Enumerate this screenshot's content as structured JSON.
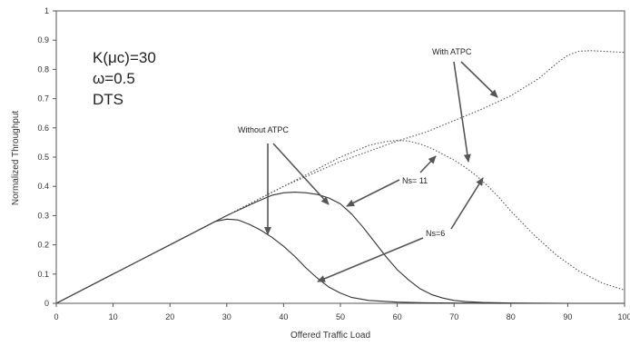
{
  "chart_data": {
    "type": "line",
    "title": "",
    "xlabel": "Offered Traffic Load",
    "ylabel": "Normalized Throughput",
    "xlim": [
      0,
      100
    ],
    "ylim": [
      0,
      1
    ],
    "x_ticks": [
      "0",
      "10",
      "20",
      "30",
      "40",
      "50",
      "60",
      "70",
      "80",
      "90",
      "100"
    ],
    "y_ticks": [
      "0",
      "0.1",
      "0.2",
      "0.3",
      "0.4",
      "0.5",
      "0.6",
      "0.7",
      "0.8",
      "0.9",
      "1"
    ],
    "grid": false,
    "parameters": [
      "K(μc)=30",
      "ω=0.5",
      "DTS"
    ],
    "annotations": [
      "Without ATPC",
      "With ATPC",
      "Ns= 11",
      "Ns=6"
    ],
    "series": [
      {
        "name": "",
        "style": "solid",
        "x": [
          0,
          10,
          20,
          25,
          28,
          30,
          32,
          34,
          36,
          38,
          40,
          42,
          44,
          46,
          48,
          50,
          52,
          55,
          60,
          65,
          70,
          80,
          90,
          100
        ],
        "y": [
          0,
          0.1,
          0.2,
          0.25,
          0.28,
          0.288,
          0.285,
          0.27,
          0.25,
          0.225,
          0.195,
          0.16,
          0.12,
          0.085,
          0.055,
          0.035,
          0.02,
          0.01,
          0.004,
          0.002,
          0.001,
          0,
          0,
          0
        ]
      },
      {
        "name": "",
        "style": "solid",
        "x": [
          0,
          10,
          20,
          30,
          35,
          38,
          40,
          42,
          44,
          46,
          48,
          50,
          52,
          54,
          56,
          58,
          60,
          62,
          64,
          66,
          68,
          70,
          72,
          75,
          80,
          90,
          100
        ],
        "y": [
          0,
          0.1,
          0.2,
          0.3,
          0.345,
          0.37,
          0.378,
          0.38,
          0.378,
          0.372,
          0.36,
          0.34,
          0.305,
          0.26,
          0.21,
          0.16,
          0.115,
          0.08,
          0.05,
          0.03,
          0.018,
          0.01,
          0.006,
          0.003,
          0.001,
          0,
          0
        ]
      },
      {
        "name": "",
        "style": "dotted",
        "x": [
          0,
          10,
          20,
          30,
          40,
          45,
          50,
          55,
          58,
          60,
          62,
          64,
          66,
          68,
          70,
          72,
          74,
          76,
          78,
          80,
          84,
          88,
          92,
          96,
          100
        ],
        "y": [
          0,
          0.1,
          0.2,
          0.3,
          0.4,
          0.45,
          0.5,
          0.54,
          0.553,
          0.557,
          0.555,
          0.545,
          0.53,
          0.51,
          0.49,
          0.465,
          0.435,
          0.4,
          0.36,
          0.315,
          0.235,
          0.165,
          0.11,
          0.07,
          0.045
        ]
      },
      {
        "name": "",
        "style": "dotted",
        "x": [
          0,
          10,
          20,
          30,
          40,
          50,
          55,
          60,
          65,
          70,
          75,
          80,
          85,
          88,
          90,
          92,
          94,
          96,
          98,
          100
        ],
        "y": [
          0,
          0.1,
          0.2,
          0.3,
          0.4,
          0.485,
          0.52,
          0.555,
          0.585,
          0.625,
          0.665,
          0.71,
          0.77,
          0.82,
          0.848,
          0.862,
          0.864,
          0.862,
          0.86,
          0.858
        ]
      }
    ]
  }
}
